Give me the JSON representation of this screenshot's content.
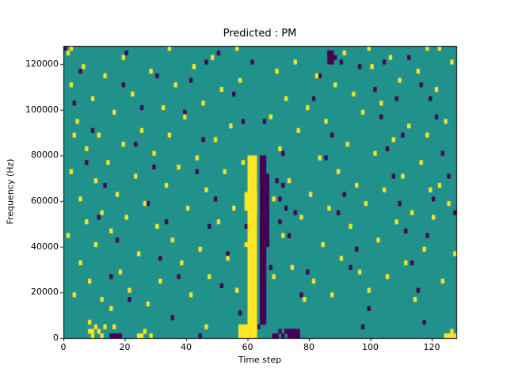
{
  "chart_data": {
    "type": "heatmap",
    "title": "Predicted : PM",
    "xlabel": "Time step",
    "ylabel": "Frequency (Hz)",
    "x_range": [
      0,
      128
    ],
    "y_range": [
      0,
      128000
    ],
    "x_ticks": [
      0,
      20,
      40,
      60,
      80,
      100,
      120
    ],
    "y_ticks": [
      0,
      20000,
      40000,
      60000,
      80000,
      100000,
      120000
    ],
    "grid": {
      "nx": 128,
      "ny": 64,
      "cell_hz": 2000
    },
    "colors": {
      "background": "#21918c",
      "active": "#fde725",
      "inactive": "#440154",
      "figure": "#ffffff",
      "axis": "#000000"
    },
    "yellow_rects": [
      [
        60,
        1,
        3,
        39
      ],
      [
        57,
        0,
        6,
        3
      ],
      [
        59,
        28,
        4,
        4
      ]
    ],
    "purple_rects": [
      [
        64,
        3,
        2,
        37
      ],
      [
        66,
        20,
        1,
        12
      ],
      [
        66,
        28,
        1,
        8
      ],
      [
        73,
        0,
        4,
        2
      ],
      [
        86,
        60,
        2,
        3
      ]
    ],
    "yellow_cells": [
      [
        1,
        62
      ],
      [
        2,
        55
      ],
      [
        2,
        36
      ],
      [
        1,
        22
      ],
      [
        3,
        9
      ],
      [
        4,
        47
      ],
      [
        5,
        30
      ],
      [
        5,
        16
      ],
      [
        6,
        59
      ],
      [
        7,
        41
      ],
      [
        7,
        25
      ],
      [
        8,
        12
      ],
      [
        8,
        3
      ],
      [
        8,
        1
      ],
      [
        9,
        52
      ],
      [
        9,
        1
      ],
      [
        9,
        0
      ],
      [
        10,
        34
      ],
      [
        10,
        20
      ],
      [
        10,
        2
      ],
      [
        11,
        44
      ],
      [
        11,
        1
      ],
      [
        12,
        27
      ],
      [
        12,
        8
      ],
      [
        12,
        0
      ],
      [
        13,
        57
      ],
      [
        13,
        2
      ],
      [
        14,
        38
      ],
      [
        15,
        23
      ],
      [
        15,
        6
      ],
      [
        16,
        49
      ],
      [
        16,
        2
      ],
      [
        17,
        31
      ],
      [
        18,
        14
      ],
      [
        19,
        61
      ],
      [
        19,
        42
      ],
      [
        20,
        26
      ],
      [
        21,
        10
      ],
      [
        22,
        53
      ],
      [
        23,
        35
      ],
      [
        24,
        18
      ],
      [
        24,
        0
      ],
      [
        25,
        45
      ],
      [
        25,
        0
      ],
      [
        26,
        29
      ],
      [
        26,
        1
      ],
      [
        27,
        7
      ],
      [
        28,
        58
      ],
      [
        28,
        0
      ],
      [
        29,
        40
      ],
      [
        30,
        24
      ],
      [
        31,
        12
      ],
      [
        32,
        50
      ],
      [
        33,
        33
      ],
      [
        34,
        63
      ],
      [
        34,
        44
      ],
      [
        35,
        21
      ],
      [
        36,
        55
      ],
      [
        37,
        37
      ],
      [
        38,
        16
      ],
      [
        39,
        48
      ],
      [
        40,
        28
      ],
      [
        41,
        9
      ],
      [
        42,
        59
      ],
      [
        43,
        39
      ],
      [
        44,
        19
      ],
      [
        45,
        51
      ],
      [
        46,
        32
      ],
      [
        46,
        2
      ],
      [
        47,
        13
      ],
      [
        48,
        61
      ],
      [
        49,
        43
      ],
      [
        50,
        25
      ],
      [
        51,
        54
      ],
      [
        52,
        36
      ],
      [
        53,
        17
      ],
      [
        54,
        46
      ],
      [
        55,
        28
      ],
      [
        56,
        63
      ],
      [
        56,
        10
      ],
      [
        57,
        56
      ],
      [
        58,
        38
      ],
      [
        59,
        20
      ],
      [
        67,
        48
      ],
      [
        68,
        30
      ],
      [
        68,
        13
      ],
      [
        69,
        58
      ],
      [
        70,
        41
      ],
      [
        71,
        22
      ],
      [
        72,
        52
      ],
      [
        73,
        34
      ],
      [
        74,
        15
      ],
      [
        75,
        60
      ],
      [
        76,
        45
      ],
      [
        77,
        26
      ],
      [
        78,
        8
      ],
      [
        79,
        50
      ],
      [
        80,
        31
      ],
      [
        81,
        12
      ],
      [
        82,
        57
      ],
      [
        83,
        39
      ],
      [
        84,
        20
      ],
      [
        85,
        47
      ],
      [
        86,
        28
      ],
      [
        87,
        9
      ],
      [
        88,
        55
      ],
      [
        89,
        36
      ],
      [
        90,
        17
      ],
      [
        91,
        62
      ],
      [
        92,
        42
      ],
      [
        93,
        24
      ],
      [
        94,
        53
      ],
      [
        95,
        33
      ],
      [
        96,
        14
      ],
      [
        97,
        49
      ],
      [
        98,
        29
      ],
      [
        99,
        63
      ],
      [
        99,
        10
      ],
      [
        100,
        59
      ],
      [
        101,
        40
      ],
      [
        102,
        21
      ],
      [
        103,
        51
      ],
      [
        104,
        32
      ],
      [
        105,
        13
      ],
      [
        106,
        61
      ],
      [
        107,
        43
      ],
      [
        108,
        25
      ],
      [
        109,
        56
      ],
      [
        110,
        35
      ],
      [
        111,
        16
      ],
      [
        112,
        46
      ],
      [
        113,
        27
      ],
      [
        114,
        8
      ],
      [
        115,
        58
      ],
      [
        116,
        38
      ],
      [
        117,
        19
      ],
      [
        118,
        63
      ],
      [
        118,
        44
      ],
      [
        119,
        32
      ],
      [
        120,
        26
      ],
      [
        121,
        54
      ],
      [
        122,
        63
      ],
      [
        122,
        33
      ],
      [
        123,
        12
      ],
      [
        124,
        47
      ],
      [
        124,
        0
      ],
      [
        125,
        29
      ],
      [
        125,
        0
      ],
      [
        126,
        60
      ],
      [
        126,
        1
      ],
      [
        126,
        0
      ],
      [
        127,
        18
      ],
      [
        127,
        0
      ],
      [
        2,
        63
      ],
      [
        3,
        44
      ]
    ],
    "purple_cells": [
      [
        0,
        63
      ],
      [
        5,
        58
      ],
      [
        9,
        45
      ],
      [
        13,
        33
      ],
      [
        17,
        21
      ],
      [
        21,
        8
      ],
      [
        25,
        50
      ],
      [
        29,
        37
      ],
      [
        33,
        25
      ],
      [
        37,
        13
      ],
      [
        41,
        56
      ],
      [
        45,
        43
      ],
      [
        49,
        30
      ],
      [
        53,
        18
      ],
      [
        57,
        5
      ],
      [
        61,
        60
      ],
      [
        65,
        47
      ],
      [
        69,
        34
      ],
      [
        73,
        22
      ],
      [
        77,
        9
      ],
      [
        81,
        52
      ],
      [
        85,
        39
      ],
      [
        89,
        27
      ],
      [
        93,
        15
      ],
      [
        97,
        2
      ],
      [
        101,
        54
      ],
      [
        105,
        41
      ],
      [
        109,
        29
      ],
      [
        113,
        16
      ],
      [
        117,
        3
      ],
      [
        121,
        48
      ],
      [
        125,
        35
      ],
      [
        3,
        51
      ],
      [
        7,
        38
      ],
      [
        11,
        26
      ],
      [
        15,
        13
      ],
      [
        19,
        55
      ],
      [
        23,
        42
      ],
      [
        27,
        29
      ],
      [
        31,
        17
      ],
      [
        35,
        4
      ],
      [
        39,
        49
      ],
      [
        43,
        36
      ],
      [
        47,
        24
      ],
      [
        51,
        11
      ],
      [
        55,
        53
      ],
      [
        59,
        24
      ],
      [
        63,
        2
      ],
      [
        67,
        15
      ],
      [
        71,
        40
      ],
      [
        75,
        27
      ],
      [
        79,
        14
      ],
      [
        83,
        57
      ],
      [
        87,
        44
      ],
      [
        91,
        31
      ],
      [
        95,
        19
      ],
      [
        99,
        6
      ],
      [
        103,
        48
      ],
      [
        107,
        35
      ],
      [
        111,
        23
      ],
      [
        115,
        10
      ],
      [
        119,
        52
      ],
      [
        123,
        40
      ],
      [
        127,
        27
      ],
      [
        20,
        62
      ],
      [
        50,
        62
      ],
      [
        86,
        62
      ],
      [
        88,
        61
      ],
      [
        90,
        60
      ],
      [
        112,
        61
      ],
      [
        44,
        0
      ],
      [
        15,
        0
      ],
      [
        16,
        0
      ],
      [
        17,
        0
      ],
      [
        18,
        0
      ],
      [
        70,
        30
      ],
      [
        70,
        25
      ],
      [
        71,
        33
      ],
      [
        72,
        28
      ],
      [
        68,
        0
      ],
      [
        69,
        0
      ],
      [
        70,
        1
      ],
      [
        71,
        0
      ],
      [
        72,
        1
      ],
      [
        73,
        0
      ],
      [
        74,
        1
      ],
      [
        75,
        0
      ],
      [
        76,
        0
      ],
      [
        96,
        59
      ],
      [
        104,
        60
      ],
      [
        116,
        55
      ],
      [
        120,
        30
      ],
      [
        118,
        22
      ],
      [
        110,
        44
      ],
      [
        108,
        52
      ],
      [
        46,
        60
      ],
      [
        30,
        57
      ],
      [
        58,
        47
      ],
      [
        62,
        33
      ]
    ]
  }
}
